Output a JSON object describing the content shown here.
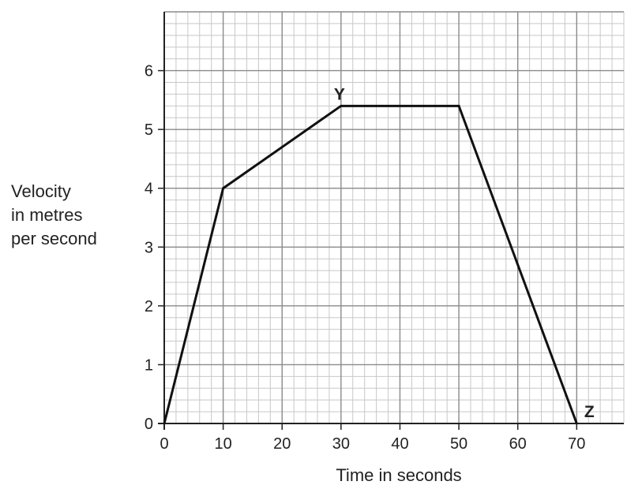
{
  "chart_data": {
    "type": "line",
    "title": "",
    "xlabel": "Time in seconds",
    "ylabel_lines": [
      "Velocity",
      "in metres",
      "per second"
    ],
    "xlim": [
      0,
      78
    ],
    "ylim": [
      0,
      7
    ],
    "grid": true,
    "grid_minor_x": 2,
    "grid_minor_y": 0.2,
    "x_ticks": [
      0,
      10,
      20,
      30,
      40,
      50,
      60,
      70
    ],
    "y_ticks": [
      0,
      1,
      2,
      3,
      4,
      5,
      6
    ],
    "series": [
      {
        "x": [
          0,
          10,
          30,
          50,
          70
        ],
        "y": [
          0,
          4,
          5.4,
          5.4,
          0
        ]
      }
    ],
    "annotations": [
      {
        "text": "Y",
        "x": 30,
        "y": 5.4
      },
      {
        "text": "Z",
        "x": 70,
        "y": 0
      }
    ],
    "colors": {
      "line": "#111111",
      "grid_minor": "#c8c8c8",
      "grid_major": "#8a8a8a",
      "axis": "#222222"
    }
  }
}
